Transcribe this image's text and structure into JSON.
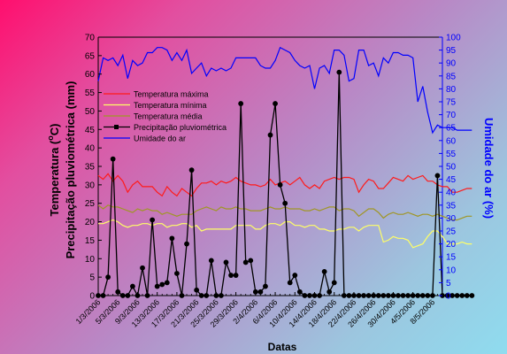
{
  "chart_data": {
    "type": "line",
    "xlabel": "Datas",
    "ylabel_left": [
      "Temperatura (",
      "o",
      "C)",
      "Precipitação pluviométrica (mm)"
    ],
    "ylabel_right": "Umidade do ar (%)",
    "ylim_left": [
      0,
      70
    ],
    "ylim_right": [
      0,
      100
    ],
    "yticks_left": [
      0,
      5,
      10,
      15,
      20,
      25,
      30,
      35,
      40,
      45,
      50,
      55,
      60,
      65,
      70
    ],
    "yticks_right": [
      0,
      5,
      10,
      15,
      20,
      25,
      30,
      35,
      40,
      45,
      50,
      55,
      60,
      65,
      70,
      75,
      80,
      85,
      90,
      95,
      100
    ],
    "x_start": "2006-03-01",
    "x_end": "2006-05-10",
    "x_tick_labels": [
      "1/3/2006",
      "5/3/2006",
      "9/3/2006",
      "13/3/2006",
      "17/3/2006",
      "21/3/2006",
      "25/3/2006",
      "29/3/2006",
      "2/4/2006",
      "6/4/2006",
      "10/4/2006",
      "14/4/2006",
      "18/4/2006",
      "22/4/2006",
      "26/4/2006",
      "30/4/2006",
      "4/5/2006",
      "8/5/2006"
    ],
    "legend_position": "upper-left",
    "grid": false,
    "series": [
      {
        "name": "Temperatura máxima",
        "color": "#ff1a1a",
        "axis": "left",
        "marker": "none",
        "values": [
          32.5,
          31.5,
          33,
          31,
          32.5,
          31,
          28,
          30,
          31,
          29.5,
          29.5,
          29.5,
          28,
          27,
          29.5,
          28,
          27,
          29,
          28,
          27,
          29,
          30.5,
          30.5,
          31,
          30,
          31,
          30.5,
          31,
          32,
          31,
          30.5,
          30,
          30,
          29.5,
          30,
          31.5,
          30,
          30.5,
          31,
          30,
          31,
          32,
          30,
          29,
          30,
          29,
          31,
          31.5,
          32,
          31.5,
          32,
          32,
          31.5,
          28,
          30,
          31.5,
          31,
          29,
          29,
          30.5,
          32,
          31.5,
          31,
          32.5,
          31.5,
          32,
          32.5,
          31,
          31,
          30,
          29.5,
          29.5,
          28,
          28,
          28.5,
          29,
          29
        ]
      },
      {
        "name": "Temperatura mínima",
        "color": "#ffff66",
        "axis": "left",
        "marker": "none",
        "values": [
          19.5,
          19.5,
          20,
          20.5,
          20,
          19,
          18.5,
          19,
          19,
          19.5,
          19.5,
          19,
          19.5,
          19.5,
          18.5,
          19,
          19,
          19.5,
          19.5,
          18.5,
          19,
          17.5,
          18,
          18,
          18,
          18,
          18,
          18,
          19,
          19,
          19,
          19,
          18,
          18,
          19,
          19.5,
          19.5,
          19,
          20,
          20,
          19,
          19,
          18.5,
          19,
          19,
          18,
          18,
          17.5,
          17.5,
          18,
          18,
          18.5,
          18.5,
          17.5,
          18.5,
          19,
          19,
          19,
          14.5,
          15,
          16,
          15.5,
          15.5,
          15,
          13,
          13.5,
          14,
          16,
          17.5,
          17.5,
          16,
          14,
          14,
          14,
          14.5,
          14,
          14
        ]
      },
      {
        "name": "Temperatura média",
        "color": "#a09626",
        "axis": "left",
        "marker": "none",
        "values": [
          24.5,
          23.5,
          24.5,
          24,
          24,
          23.5,
          23,
          22.5,
          23.5,
          23,
          23.5,
          23,
          23,
          22,
          22.5,
          22,
          21.5,
          22,
          22,
          22,
          23,
          23.5,
          24,
          23.5,
          23,
          24,
          23.5,
          23.5,
          24,
          23.5,
          23.5,
          23,
          23,
          23,
          23.5,
          24,
          23.5,
          23.5,
          24,
          23.5,
          23.5,
          23.5,
          23,
          23,
          23.5,
          23,
          23.5,
          24,
          24,
          23,
          23.5,
          23.5,
          23,
          21.5,
          22.5,
          23.5,
          23.5,
          22.5,
          21,
          22,
          22.5,
          22,
          22,
          22.5,
          22,
          21.5,
          22,
          22,
          21.5,
          22,
          21.5,
          21,
          20.5,
          20.5,
          21,
          21.5,
          21.5
        ]
      },
      {
        "name": "Precipitação pluviométrica",
        "color": "#000000",
        "axis": "left",
        "marker": "circle",
        "values": [
          0,
          0,
          5,
          37,
          1,
          0,
          0,
          2.5,
          0,
          7.5,
          0,
          20.5,
          2.5,
          3,
          3.5,
          15.5,
          6,
          0,
          14,
          34,
          1.5,
          0,
          0,
          9.5,
          0,
          0,
          9,
          5.5,
          5.5,
          52,
          9,
          9.5,
          1,
          1,
          2.5,
          43.5,
          52,
          30,
          25,
          3.5,
          5.5,
          1,
          0,
          0,
          0,
          0,
          6.5,
          1,
          3.5,
          60.5,
          0,
          0,
          0,
          0,
          0,
          0,
          0,
          0,
          0,
          0,
          0,
          0,
          0,
          0,
          0,
          0,
          0,
          0,
          0,
          32.5,
          0,
          0,
          0,
          0,
          0,
          0,
          0
        ]
      },
      {
        "name": "Umidade do ar",
        "color": "#0000ff",
        "axis": "right",
        "marker": "none",
        "values": [
          83,
          92,
          91,
          92,
          89,
          93,
          84,
          91,
          89,
          90,
          94,
          94,
          96,
          96,
          95,
          91,
          94,
          91,
          95,
          86,
          88,
          90,
          85,
          88,
          87,
          88,
          87,
          88,
          92,
          92,
          92,
          92,
          92,
          89,
          88,
          88,
          91,
          96,
          95,
          94,
          91,
          89,
          88,
          89,
          80,
          88,
          89,
          86,
          95,
          95,
          93,
          83,
          84,
          95,
          95,
          89,
          90,
          85,
          92,
          90,
          94,
          94,
          93,
          93,
          92,
          75,
          81,
          71,
          63,
          66,
          65,
          65,
          65,
          64,
          64,
          64,
          64
        ]
      }
    ]
  }
}
